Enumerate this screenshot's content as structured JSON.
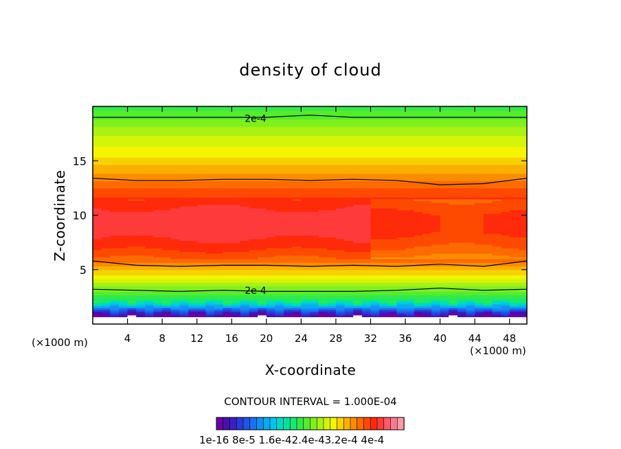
{
  "chart_data": {
    "type": "heatmap",
    "title": "density of cloud",
    "xlabel": "X-coordinate",
    "ylabel": "Z-coordinate",
    "x_unit_left": "(×1000 m)",
    "x_unit_right": "(×1000 m)",
    "xlim": [
      0,
      50
    ],
    "ylim": [
      0,
      20
    ],
    "x_ticks": [
      4,
      8,
      12,
      16,
      20,
      24,
      28,
      32,
      36,
      40,
      44,
      48
    ],
    "y_ticks": [
      5,
      10,
      15
    ],
    "contour_interval_label": "CONTOUR INTERVAL = 1.000E-04",
    "contour_labels": [
      {
        "text": "2e-4",
        "x": 17.5,
        "z": 18.9
      },
      {
        "text": "2e-4",
        "x": 17.5,
        "z": 3.1
      }
    ],
    "contour_lines": [
      {
        "level": "2e-4",
        "z": [
          19.0,
          19.0,
          19.0,
          19.0,
          19.0,
          19.2,
          19.0,
          19.0,
          19.0,
          19.0,
          19.0
        ]
      },
      {
        "level": "3e-4",
        "z": [
          13.4,
          13.2,
          13.2,
          13.3,
          13.3,
          13.2,
          13.3,
          13.2,
          12.8,
          12.9,
          13.4
        ]
      },
      {
        "level": "3e-4",
        "z": [
          5.8,
          5.4,
          5.3,
          5.4,
          5.4,
          5.3,
          5.4,
          5.3,
          5.5,
          5.3,
          5.8
        ]
      },
      {
        "level": "2e-4",
        "z": [
          3.2,
          3.1,
          3.0,
          3.1,
          3.0,
          3.0,
          3.0,
          3.1,
          3.3,
          3.1,
          3.2
        ]
      }
    ],
    "vertical_profile": {
      "z": [
        0.5,
        1.0,
        1.5,
        2.0,
        2.5,
        3.0,
        4.0,
        5.0,
        6.0,
        7.0,
        8.5,
        10.0,
        11.5,
        13.0,
        14.0,
        15.0,
        16.0,
        17.0,
        18.0,
        19.0,
        20.0
      ],
      "density_e4": [
        0.0,
        0.3,
        0.9,
        1.5,
        1.8,
        2.0,
        2.4,
        2.8,
        3.2,
        3.4,
        3.6,
        3.6,
        3.4,
        3.1,
        2.9,
        2.7,
        2.5,
        2.4,
        2.2,
        2.0,
        1.8
      ]
    },
    "colorbar": {
      "labels": "1e-16 8e-5 1.6e-42.4e-43.2e-4 4e-4",
      "colors": [
        "#6a00a8",
        "#4b0fa9",
        "#3a20c4",
        "#2a3ad8",
        "#1f55e6",
        "#1a72ef",
        "#138ef2",
        "#0aaaf0",
        "#00c6e8",
        "#00d9c4",
        "#00e39c",
        "#18e872",
        "#30ea4a",
        "#55ec2c",
        "#7ff01e",
        "#a8f214",
        "#d2f50a",
        "#f5f500",
        "#f8d200",
        "#fab000",
        "#fb8c00",
        "#fc6a00",
        "#fd4a00",
        "#fe2a0a",
        "#ff3a3a",
        "#ff5a6a",
        "#ff7a90",
        "#ff9aaa"
      ]
    }
  }
}
